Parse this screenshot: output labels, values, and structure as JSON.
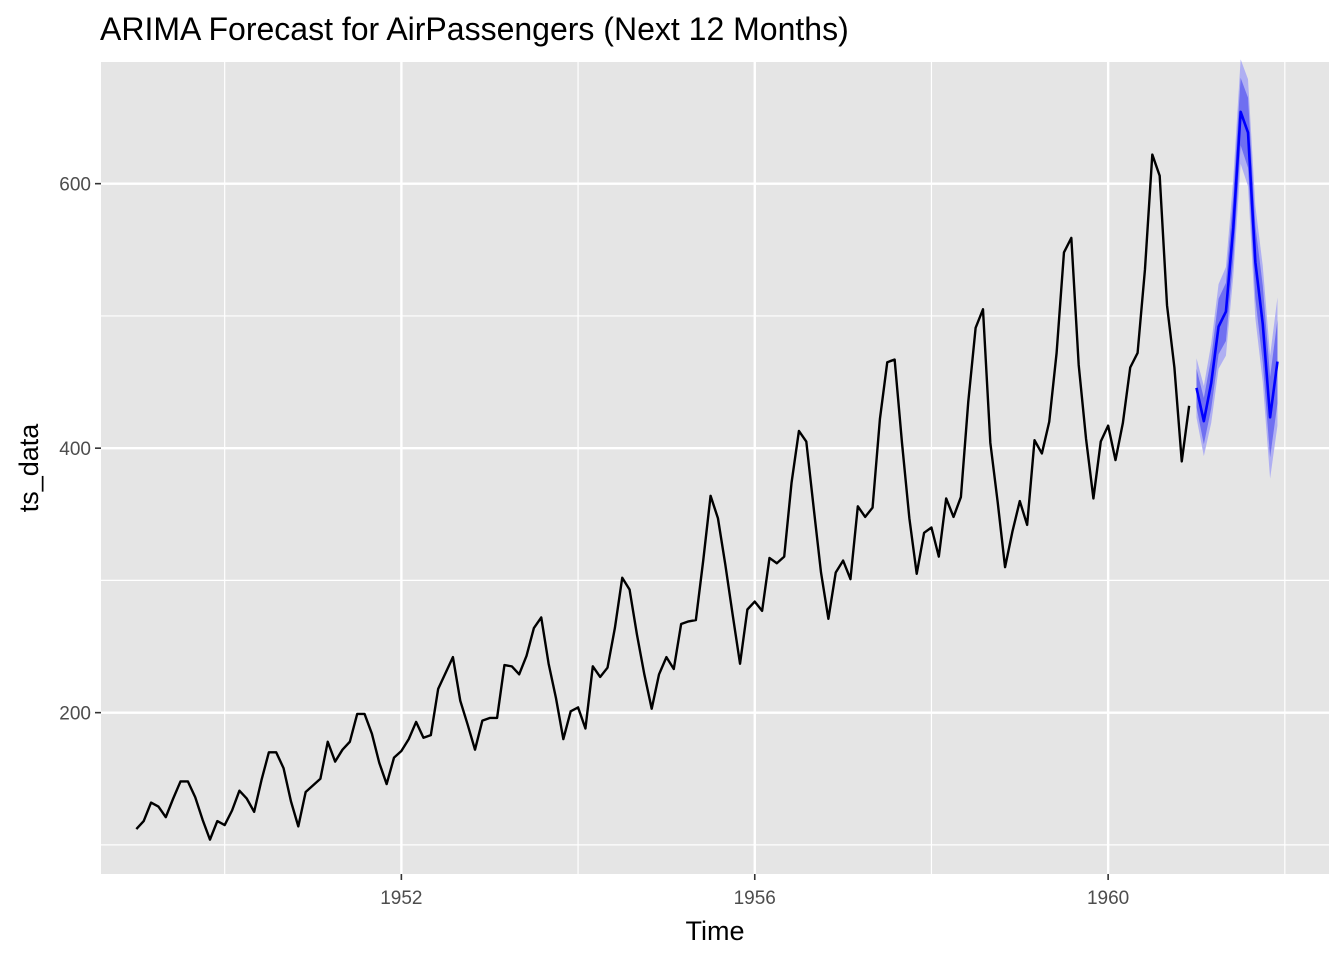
{
  "chart_data": {
    "type": "line",
    "title": "ARIMA Forecast for AirPassengers (Next 12 Months)",
    "xlabel": "Time",
    "ylabel": "ts_data",
    "xlim": [
      1948.6,
      1962.5
    ],
    "ylim": [
      78,
      692
    ],
    "x_ticks": [
      1952,
      1956,
      1960
    ],
    "x_tick_labels": [
      "1952",
      "1956",
      "1960"
    ],
    "y_ticks": [
      200,
      400,
      600
    ],
    "y_tick_labels": [
      "200",
      "400",
      "600"
    ],
    "grid": true,
    "legend": "none",
    "colors": {
      "panel_background": "#e5e5e5",
      "grid": "#ffffff",
      "history_line": "#000000",
      "forecast_line": "#0000ff",
      "interval_80": "#5a5af0",
      "interval_95": "#a6a6f5"
    },
    "history": {
      "start": 1949.0,
      "frequency": 12,
      "values": [
        112,
        118,
        132,
        129,
        121,
        135,
        148,
        148,
        136,
        119,
        104,
        118,
        115,
        126,
        141,
        135,
        125,
        149,
        170,
        170,
        158,
        133,
        114,
        140,
        145,
        150,
        178,
        163,
        172,
        178,
        199,
        199,
        184,
        162,
        146,
        166,
        171,
        180,
        193,
        181,
        183,
        218,
        230,
        242,
        209,
        191,
        172,
        194,
        196,
        196,
        236,
        235,
        229,
        243,
        264,
        272,
        237,
        211,
        180,
        201,
        204,
        188,
        235,
        227,
        234,
        264,
        302,
        293,
        259,
        229,
        203,
        229,
        242,
        233,
        267,
        269,
        270,
        315,
        364,
        347,
        312,
        274,
        237,
        278,
        284,
        277,
        317,
        313,
        318,
        374,
        413,
        405,
        355,
        306,
        271,
        306,
        315,
        301,
        356,
        348,
        355,
        422,
        465,
        467,
        404,
        347,
        305,
        336,
        340,
        318,
        362,
        348,
        363,
        435,
        491,
        505,
        404,
        359,
        310,
        337,
        360,
        342,
        406,
        396,
        420,
        472,
        548,
        559,
        463,
        407,
        362,
        405,
        417,
        391,
        419,
        461,
        472,
        535,
        622,
        606,
        508,
        461,
        390,
        432
      ]
    },
    "forecast": {
      "start": 1961.0,
      "frequency": 12,
      "point": [
        445.6,
        420.4,
        449.2,
        491.9,
        503.3,
        566.9,
        654.3,
        638.6,
        540.5,
        494.1,
        423.3,
        465.5
      ],
      "lo80": [
        431.0,
        403.0,
        430.0,
        471.0,
        481.0,
        543.0,
        629.0,
        612.0,
        513.0,
        465.0,
        393.0,
        434.0
      ],
      "hi80": [
        460.0,
        438.0,
        468.0,
        513.0,
        525.0,
        591.0,
        680.0,
        665.0,
        568.0,
        523.0,
        454.0,
        497.0
      ],
      "lo95": [
        423.0,
        394.0,
        419.0,
        460.0,
        470.0,
        530.0,
        615.0,
        598.0,
        498.0,
        450.0,
        377.0,
        417.0
      ],
      "hi95": [
        468.0,
        447.0,
        479.0,
        524.0,
        537.0,
        604.0,
        694.0,
        679.0,
        583.0,
        538.0,
        470.0,
        514.0
      ]
    }
  }
}
